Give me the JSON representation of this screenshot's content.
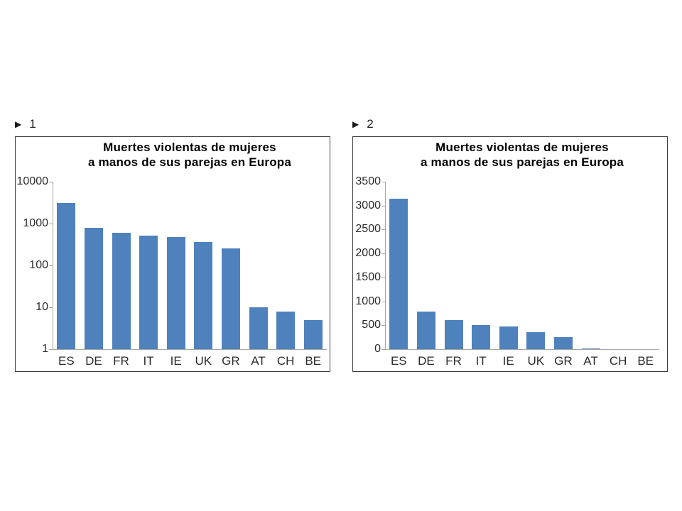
{
  "page": {
    "background": "#ffffff"
  },
  "icons": {
    "play_triangle": "▶"
  },
  "colors": {
    "bar": "#4f81bd",
    "axis": "#a6a6a6",
    "panel_border": "#3f3f3f",
    "text": "#2b2b2b",
    "title_text": "#000000"
  },
  "figures": [
    {
      "marker_label": "1"
    },
    {
      "marker_label": "2"
    }
  ],
  "chart_data": [
    {
      "type": "bar",
      "figure_label": "1",
      "title": "Muertes violentas de mujeres a manos de sus parejas en Europa",
      "title_lines": [
        "Muertes violentas de mujeres",
        "a manos de sus parejas en Europa"
      ],
      "categories": [
        "ES",
        "DE",
        "FR",
        "IT",
        "IE",
        "UK",
        "GR",
        "AT",
        "CH",
        "BE"
      ],
      "values": [
        3140,
        780,
        610,
        510,
        480,
        360,
        260,
        10,
        8,
        5
      ],
      "xlabel": "",
      "ylabel": "",
      "y_scale": "log10",
      "y_ticks": [
        10000,
        1000,
        100,
        10,
        1
      ],
      "ylim": [
        1,
        10000
      ],
      "grid": false,
      "legend": "none",
      "bar_color": "#4f81bd"
    },
    {
      "type": "bar",
      "figure_label": "2",
      "title": "Muertes violentas de mujeres a manos de sus parejas en Europa",
      "title_lines": [
        "Muertes violentas de mujeres",
        "a manos de sus parejas en Europa"
      ],
      "categories": [
        "ES",
        "DE",
        "FR",
        "IT",
        "IE",
        "UK",
        "GR",
        "AT",
        "CH",
        "BE"
      ],
      "values": [
        3140,
        780,
        610,
        510,
        480,
        360,
        260,
        10,
        8,
        5
      ],
      "xlabel": "",
      "ylabel": "",
      "y_scale": "linear",
      "y_ticks": [
        3500,
        3000,
        2500,
        2000,
        1500,
        1000,
        500,
        0
      ],
      "ylim": [
        0,
        3500
      ],
      "grid": false,
      "legend": "none",
      "bar_color": "#4f81bd"
    }
  ]
}
